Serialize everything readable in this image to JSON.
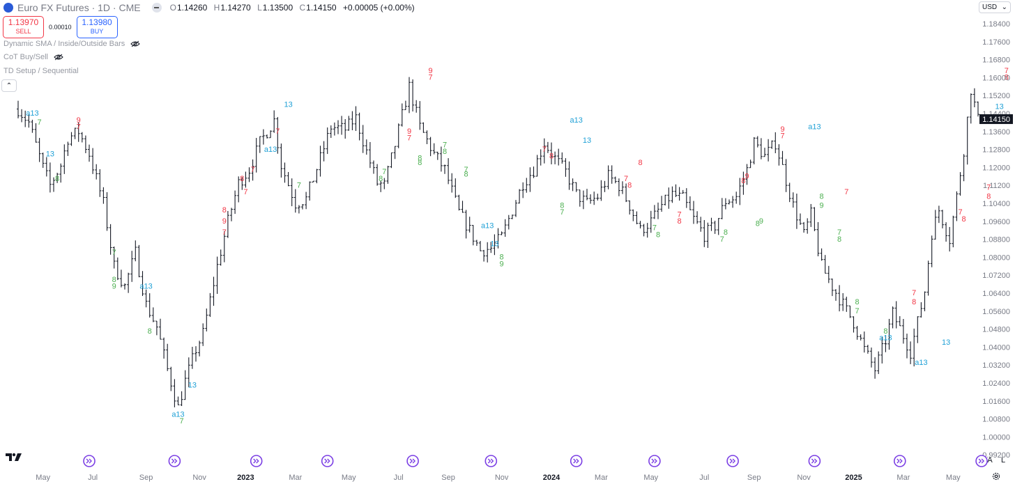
{
  "header": {
    "symbol_title": "Euro FX Futures · 1D · CME",
    "ohlc": [
      {
        "k": "O",
        "v": "1.14260"
      },
      {
        "k": "H",
        "v": "1.14270"
      },
      {
        "k": "L",
        "v": "1.13500"
      },
      {
        "k": "C",
        "v": "1.14150"
      }
    ],
    "change": "+0.00005 (+0.00%)"
  },
  "trade": {
    "sell_price": "1.13970",
    "sell_label": "SELL",
    "spread": "0.00010",
    "buy_price": "1.13980",
    "buy_label": "BUY"
  },
  "indicators": [
    "Dynamic SMA / Inside/Outside Bars",
    "CoT Buy/Sell",
    "TD Setup / Sequential"
  ],
  "currency": "USD",
  "bottom": {
    "auto": "A",
    "log": "L"
  },
  "colors": {
    "red": "#f23645",
    "green": "#4caf50",
    "blue": "#1ea0d6",
    "bar": "#131722",
    "event": "#7b3fe4"
  },
  "chart_data": {
    "type": "ohlc",
    "y_ticks": [
      "1.18400",
      "1.17600",
      "1.16800",
      "1.16000",
      "1.15200",
      "1.14400",
      "1.13600",
      "1.12800",
      "1.12000",
      "1.11200",
      "1.10400",
      "1.09600",
      "1.08800",
      "1.08000",
      "1.07200",
      "1.06400",
      "1.05600",
      "1.04800",
      "1.04000",
      "1.03200",
      "1.02400",
      "1.01600",
      "1.00800",
      "1.00000",
      "0.99200"
    ],
    "ylim": [
      0.992,
      1.188
    ],
    "last_price": "1.14150",
    "x_ticks": [
      "May",
      "Jul",
      "Sep",
      "Nov",
      "2023",
      "Mar",
      "May",
      "Jul",
      "Sep",
      "Nov",
      "2024",
      "Mar",
      "May",
      "Jul",
      "Sep",
      "Nov",
      "2025",
      "Mar",
      "May"
    ],
    "x_tick_indices": [
      7,
      21,
      36,
      51,
      64,
      78,
      93,
      107,
      121,
      136,
      150,
      164,
      178,
      193,
      207,
      221,
      235,
      249,
      263
    ],
    "bar_count": 266,
    "anchors": [
      [
        0,
        1.146
      ],
      [
        3,
        1.14
      ],
      [
        7,
        1.12
      ],
      [
        9,
        1.112
      ],
      [
        12,
        1.121
      ],
      [
        14,
        1.133
      ],
      [
        17,
        1.136
      ],
      [
        20,
        1.126
      ],
      [
        24,
        1.104
      ],
      [
        27,
        1.076
      ],
      [
        30,
        1.067
      ],
      [
        33,
        1.082
      ],
      [
        36,
        1.059
      ],
      [
        39,
        1.049
      ],
      [
        42,
        1.03
      ],
      [
        45,
        1.013
      ],
      [
        47,
        1.025
      ],
      [
        50,
        1.039
      ],
      [
        52,
        1.046
      ],
      [
        56,
        1.076
      ],
      [
        59,
        1.096
      ],
      [
        62,
        1.113
      ],
      [
        65,
        1.119
      ],
      [
        68,
        1.131
      ],
      [
        72,
        1.141
      ],
      [
        74,
        1.121
      ],
      [
        78,
        1.104
      ],
      [
        81,
        1.106
      ],
      [
        85,
        1.124
      ],
      [
        88,
        1.138
      ],
      [
        92,
        1.137
      ],
      [
        95,
        1.142
      ],
      [
        98,
        1.127
      ],
      [
        101,
        1.113
      ],
      [
        103,
        1.112
      ],
      [
        106,
        1.13
      ],
      [
        110,
        1.156
      ],
      [
        113,
        1.138
      ],
      [
        117,
        1.126
      ],
      [
        120,
        1.119
      ],
      [
        124,
        1.1
      ],
      [
        127,
        1.092
      ],
      [
        130,
        1.083
      ],
      [
        133,
        1.084
      ],
      [
        136,
        1.089
      ],
      [
        139,
        1.101
      ],
      [
        142,
        1.113
      ],
      [
        145,
        1.119
      ],
      [
        148,
        1.131
      ],
      [
        151,
        1.124
      ],
      [
        154,
        1.118
      ],
      [
        157,
        1.108
      ],
      [
        160,
        1.104
      ],
      [
        163,
        1.107
      ],
      [
        166,
        1.116
      ],
      [
        169,
        1.112
      ],
      [
        172,
        1.103
      ],
      [
        175,
        1.092
      ],
      [
        178,
        1.096
      ],
      [
        181,
        1.103
      ],
      [
        184,
        1.108
      ],
      [
        187,
        1.106
      ],
      [
        190,
        1.097
      ],
      [
        193,
        1.09
      ],
      [
        196,
        1.094
      ],
      [
        199,
        1.105
      ],
      [
        202,
        1.107
      ],
      [
        205,
        1.119
      ],
      [
        207,
        1.131
      ],
      [
        210,
        1.125
      ],
      [
        213,
        1.131
      ],
      [
        215,
        1.12
      ],
      [
        218,
        1.103
      ],
      [
        221,
        1.09
      ],
      [
        223,
        1.099
      ],
      [
        226,
        1.076
      ],
      [
        229,
        1.067
      ],
      [
        232,
        1.059
      ],
      [
        235,
        1.051
      ],
      [
        238,
        1.039
      ],
      [
        241,
        1.03
      ],
      [
        244,
        1.043
      ],
      [
        246,
        1.055
      ],
      [
        249,
        1.045
      ],
      [
        251,
        1.038
      ],
      [
        253,
        1.051
      ],
      [
        255,
        1.065
      ],
      [
        257,
        1.091
      ],
      [
        259,
        1.101
      ],
      [
        262,
        1.088
      ],
      [
        264,
        1.107
      ],
      [
        266,
        1.128
      ],
      [
        268,
        1.155
      ],
      [
        270,
        1.141
      ]
    ],
    "td_labels": [
      {
        "i": 4,
        "p": 1.143,
        "t": "a13",
        "c": "blue"
      },
      {
        "i": 6,
        "p": 1.139,
        "t": "7",
        "c": "green"
      },
      {
        "i": 9,
        "p": 1.125,
        "t": "13",
        "c": "blue"
      },
      {
        "i": 11,
        "p": 1.114,
        "t": "8",
        "c": "green"
      },
      {
        "i": 17,
        "p": 1.137,
        "t": "7",
        "c": "red"
      },
      {
        "i": 17,
        "p": 1.14,
        "t": "9",
        "c": "red"
      },
      {
        "i": 27,
        "p": 1.081,
        "t": "7",
        "c": "green"
      },
      {
        "i": 27,
        "p": 1.069,
        "t": "8",
        "c": "green"
      },
      {
        "i": 27,
        "p": 1.066,
        "t": "9",
        "c": "green"
      },
      {
        "i": 36,
        "p": 1.066,
        "t": "a13",
        "c": "blue"
      },
      {
        "i": 37,
        "p": 1.046,
        "t": "8",
        "c": "green"
      },
      {
        "i": 45,
        "p": 1.009,
        "t": "a13",
        "c": "blue"
      },
      {
        "i": 46,
        "p": 1.006,
        "t": "7",
        "c": "green"
      },
      {
        "i": 49,
        "p": 1.022,
        "t": "13",
        "c": "blue"
      },
      {
        "i": 58,
        "p": 1.1,
        "t": "8",
        "c": "red"
      },
      {
        "i": 58,
        "p": 1.095,
        "t": "9",
        "c": "red"
      },
      {
        "i": 58,
        "p": 1.09,
        "t": "7",
        "c": "red"
      },
      {
        "i": 63,
        "p": 1.114,
        "t": "8",
        "c": "red"
      },
      {
        "i": 64,
        "p": 1.108,
        "t": "7",
        "c": "red"
      },
      {
        "i": 66,
        "p": 1.118,
        "t": "7",
        "c": "red"
      },
      {
        "i": 73,
        "p": 1.135,
        "t": "7",
        "c": "red"
      },
      {
        "i": 76,
        "p": 1.147,
        "t": "13",
        "c": "blue"
      },
      {
        "i": 71,
        "p": 1.127,
        "t": "a13",
        "c": "blue"
      },
      {
        "i": 79,
        "p": 1.111,
        "t": "7",
        "c": "green"
      },
      {
        "i": 102,
        "p": 1.114,
        "t": "8",
        "c": "green"
      },
      {
        "i": 103,
        "p": 1.117,
        "t": "7",
        "c": "green"
      },
      {
        "i": 110,
        "p": 1.135,
        "t": "9",
        "c": "red"
      },
      {
        "i": 110,
        "p": 1.132,
        "t": "7",
        "c": "red"
      },
      {
        "i": 113,
        "p": 1.123,
        "t": "8",
        "c": "green"
      },
      {
        "i": 113,
        "p": 1.121,
        "t": "8",
        "c": "green"
      },
      {
        "i": 116,
        "p": 1.162,
        "t": "9",
        "c": "red"
      },
      {
        "i": 116,
        "p": 1.159,
        "t": "7",
        "c": "red"
      },
      {
        "i": 120,
        "p": 1.129,
        "t": "7",
        "c": "green"
      },
      {
        "i": 120,
        "p": 1.126,
        "t": "8",
        "c": "green"
      },
      {
        "i": 126,
        "p": 1.118,
        "t": "7",
        "c": "green"
      },
      {
        "i": 126,
        "p": 1.116,
        "t": "8",
        "c": "green"
      },
      {
        "i": 132,
        "p": 1.093,
        "t": "a13",
        "c": "blue"
      },
      {
        "i": 134,
        "p": 1.085,
        "t": "13",
        "c": "blue"
      },
      {
        "i": 136,
        "p": 1.079,
        "t": "8",
        "c": "green"
      },
      {
        "i": 136,
        "p": 1.076,
        "t": "9",
        "c": "green"
      },
      {
        "i": 148,
        "p": 1.127,
        "t": "7",
        "c": "red"
      },
      {
        "i": 150,
        "p": 1.124,
        "t": "8",
        "c": "red"
      },
      {
        "i": 153,
        "p": 1.102,
        "t": "8",
        "c": "green"
      },
      {
        "i": 153,
        "p": 1.099,
        "t": "7",
        "c": "green"
      },
      {
        "i": 157,
        "p": 1.14,
        "t": "a13",
        "c": "blue"
      },
      {
        "i": 160,
        "p": 1.131,
        "t": "13",
        "c": "blue"
      },
      {
        "i": 171,
        "p": 1.114,
        "t": "7",
        "c": "red"
      },
      {
        "i": 172,
        "p": 1.111,
        "t": "8",
        "c": "red"
      },
      {
        "i": 175,
        "p": 1.121,
        "t": "8",
        "c": "red"
      },
      {
        "i": 179,
        "p": 1.092,
        "t": "7",
        "c": "green"
      },
      {
        "i": 180,
        "p": 1.089,
        "t": "8",
        "c": "green"
      },
      {
        "i": 186,
        "p": 1.098,
        "t": "7",
        "c": "red"
      },
      {
        "i": 186,
        "p": 1.095,
        "t": "8",
        "c": "red"
      },
      {
        "i": 198,
        "p": 1.087,
        "t": "7",
        "c": "green"
      },
      {
        "i": 199,
        "p": 1.09,
        "t": "8",
        "c": "green"
      },
      {
        "i": 204,
        "p": 1.113,
        "t": "8",
        "c": "red"
      },
      {
        "i": 205,
        "p": 1.115,
        "t": "9",
        "c": "red"
      },
      {
        "i": 208,
        "p": 1.094,
        "t": "8",
        "c": "green"
      },
      {
        "i": 209,
        "p": 1.095,
        "t": "9",
        "c": "green"
      },
      {
        "i": 215,
        "p": 1.136,
        "t": "9",
        "c": "red"
      },
      {
        "i": 215,
        "p": 1.133,
        "t": "7",
        "c": "red"
      },
      {
        "i": 224,
        "p": 1.137,
        "t": "a13",
        "c": "blue"
      },
      {
        "i": 226,
        "p": 1.106,
        "t": "8",
        "c": "green"
      },
      {
        "i": 226,
        "p": 1.102,
        "t": "9",
        "c": "green"
      },
      {
        "i": 231,
        "p": 1.09,
        "t": "7",
        "c": "green"
      },
      {
        "i": 231,
        "p": 1.087,
        "t": "8",
        "c": "green"
      },
      {
        "i": 233,
        "p": 1.108,
        "t": "7",
        "c": "red"
      },
      {
        "i": 236,
        "p": 1.059,
        "t": "8",
        "c": "green"
      },
      {
        "i": 236,
        "p": 1.055,
        "t": "7",
        "c": "green"
      },
      {
        "i": 244,
        "p": 1.043,
        "t": "a13",
        "c": "blue"
      },
      {
        "i": 244,
        "p": 1.046,
        "t": "8",
        "c": "green"
      },
      {
        "i": 252,
        "p": 1.063,
        "t": "7",
        "c": "red"
      },
      {
        "i": 252,
        "p": 1.059,
        "t": "8",
        "c": "red"
      },
      {
        "i": 254,
        "p": 1.032,
        "t": "a13",
        "c": "blue"
      },
      {
        "i": 261,
        "p": 1.041,
        "t": "13",
        "c": "blue"
      },
      {
        "i": 265,
        "p": 1.099,
        "t": "7",
        "c": "red"
      },
      {
        "i": 266,
        "p": 1.096,
        "t": "8",
        "c": "red"
      },
      {
        "i": 273,
        "p": 1.11,
        "t": "7",
        "c": "red"
      },
      {
        "i": 273,
        "p": 1.106,
        "t": "8",
        "c": "red"
      },
      {
        "i": 278,
        "p": 1.162,
        "t": "7",
        "c": "red"
      },
      {
        "i": 278,
        "p": 1.159,
        "t": "8",
        "c": "red"
      },
      {
        "i": 276,
        "p": 1.146,
        "t": "13",
        "c": "blue"
      }
    ],
    "events": [
      20,
      44,
      67,
      87,
      111,
      133,
      157,
      179,
      201,
      224,
      248,
      271
    ]
  }
}
